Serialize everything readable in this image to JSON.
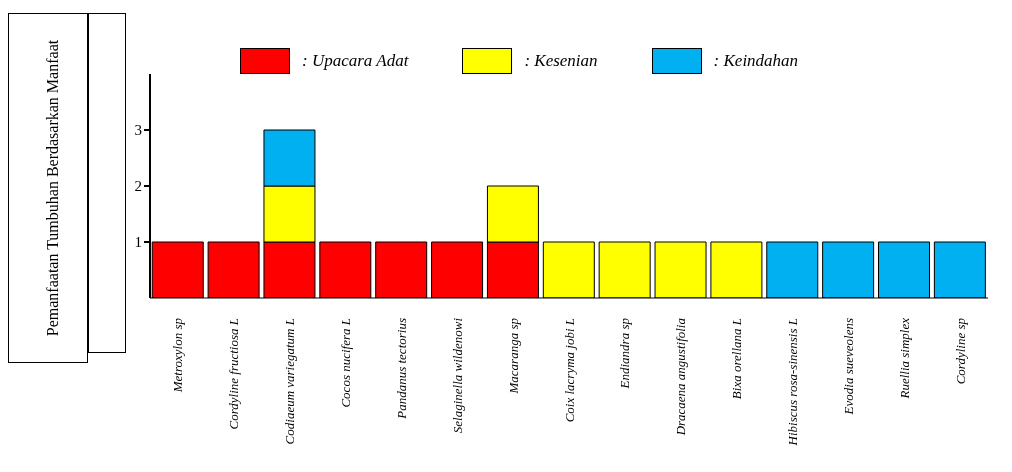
{
  "chart_data": {
    "type": "bar",
    "stacked": true,
    "ylabel": "Pemanfaatan Tumbuhan Berdasarkan Manfaat",
    "categories": [
      "Metroxylon sp",
      "Cordyline fructiosa L",
      "Codiaeum variegatum L",
      "Cocos nucifera L",
      "Pandanus tectorius",
      "Selaginella wildenowi",
      "Macaranga  sp",
      "Coix lacryma jobi L",
      "Endiandra     sp",
      "Dracaena angustifolia",
      "Bixa orellana L",
      "Hibiscus rosa-sinensis L",
      "Evodia sueveolens",
      "Ruellia simplex",
      "Cordyline sp"
    ],
    "series": [
      {
        "name": ": Upacara Adat",
        "color": "#ff0000",
        "values": [
          1,
          1,
          1,
          1,
          1,
          1,
          1,
          null,
          null,
          null,
          null,
          null,
          null,
          null,
          null
        ]
      },
      {
        "name": ": Kesenian",
        "color": "#ffff00",
        "values": [
          null,
          null,
          1,
          null,
          null,
          null,
          1,
          1,
          1,
          1,
          1,
          null,
          null,
          null,
          null
        ]
      },
      {
        "name": ": Keindahan",
        "color": "#00b0f0",
        "values": [
          null,
          null,
          1,
          null,
          null,
          null,
          null,
          null,
          null,
          null,
          null,
          1,
          1,
          1,
          1
        ]
      }
    ],
    "ylim": [
      0,
      4
    ],
    "yticks": [
      1,
      2,
      3
    ],
    "grid": false,
    "legend": "top left"
  }
}
